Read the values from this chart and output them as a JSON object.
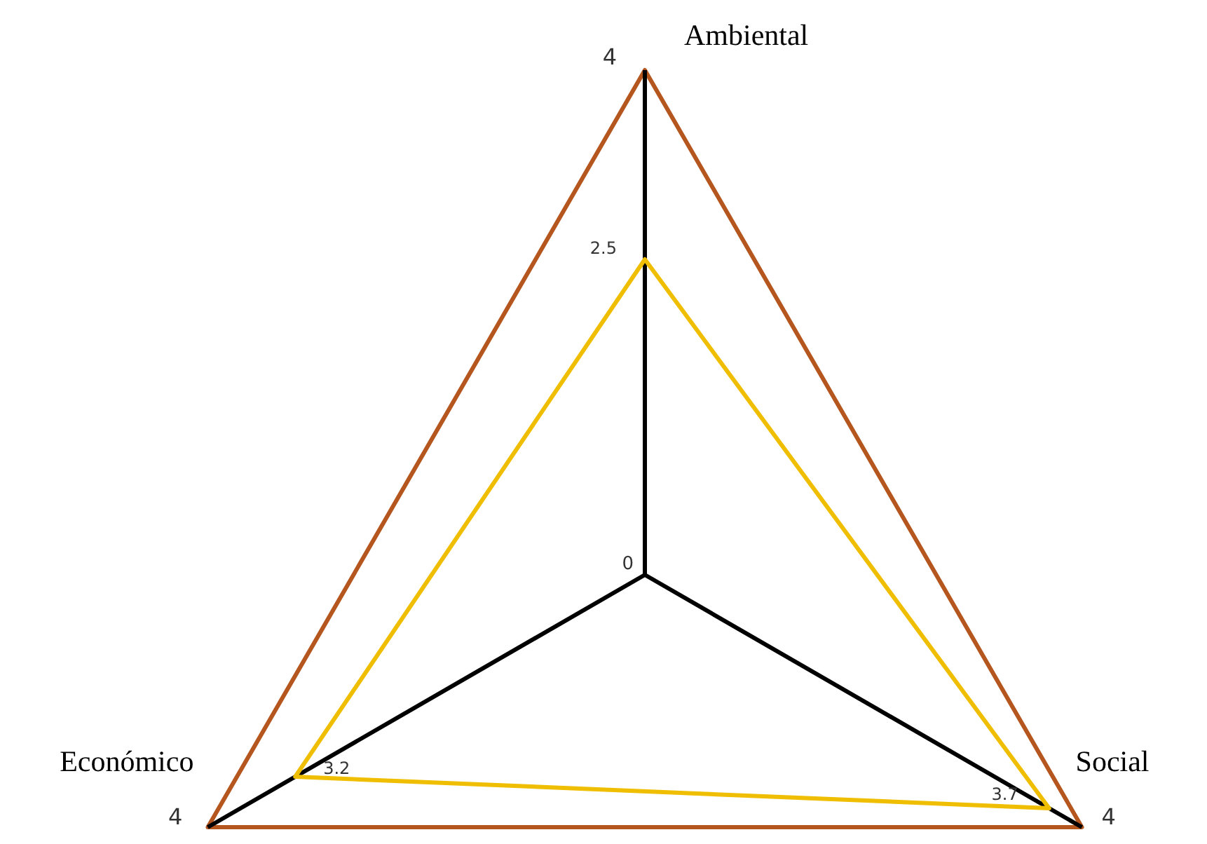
{
  "chart_data": {
    "type": "radar",
    "categories": [
      "Ambiental",
      "Social",
      "Económico"
    ],
    "ylim": [
      0,
      4
    ],
    "yticks": [
      0,
      4
    ],
    "grid": true,
    "annotations": [
      "4",
      "4"
    ],
    "series": [
      {
        "color": "#f0be00",
        "values": [
          2.5,
          3.7,
          3.2
        ],
        "value_labels": [
          "2.5",
          "3.7",
          "3.2"
        ]
      }
    ]
  }
}
